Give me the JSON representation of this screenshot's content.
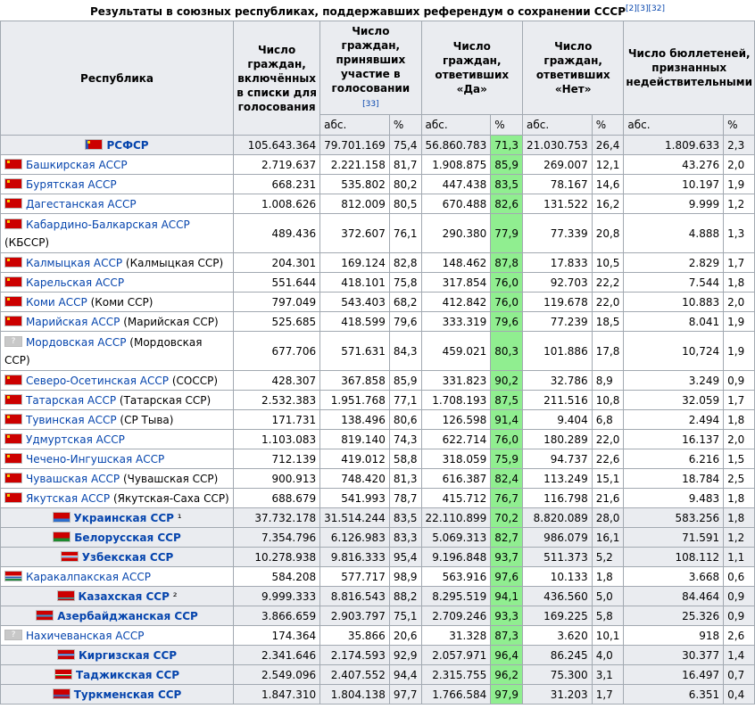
{
  "caption": {
    "text": "Результаты в союзных республиках, поддержавших референдум о сохранении СССР",
    "refs": "[2][3][32]"
  },
  "headers": {
    "republic": "Республика",
    "registered": "Число граждан, включённых в списки для голосования",
    "participated": "Число граждан, принявших участие в голосовании",
    "participated_ref": "[33]",
    "yes": "Число граждан, ответивших «Да»",
    "no": "Число граждан, ответивших «Нет»",
    "invalid": "Число бюллетеней, признанных недействительными",
    "abs": "абс.",
    "pct": "%"
  },
  "rows": [
    {
      "type": "ssr",
      "flag": "ru",
      "name": "РСФСР",
      "note": "",
      "reg": "105.643.364",
      "part": "79.701.169",
      "part_p": "75,4",
      "yes": "56.860.783",
      "yes_p": "71,3",
      "no": "21.030.753",
      "no_p": "26,4",
      "inv": "1.809.633",
      "inv_p": "2,3"
    },
    {
      "type": "asr",
      "flag": "red",
      "name": "Башкирская АССР",
      "suffix": "",
      "reg": "2.719.637",
      "part": "2.221.158",
      "part_p": "81,7",
      "yes": "1.908.875",
      "yes_p": "85,9",
      "no": "269.007",
      "no_p": "12,1",
      "inv": "43.276",
      "inv_p": "2,0"
    },
    {
      "type": "asr",
      "flag": "red",
      "name": "Бурятская АССР",
      "suffix": "",
      "reg": "668.231",
      "part": "535.802",
      "part_p": "80,2",
      "yes": "447.438",
      "yes_p": "83,5",
      "no": "78.167",
      "no_p": "14,6",
      "inv": "10.197",
      "inv_p": "1,9"
    },
    {
      "type": "asr",
      "flag": "red",
      "name": "Дагестанская АССР",
      "suffix": "",
      "reg": "1.008.626",
      "part": "812.009",
      "part_p": "80,5",
      "yes": "670.488",
      "yes_p": "82,6",
      "no": "131.522",
      "no_p": "16,2",
      "inv": "9.999",
      "inv_p": "1,2"
    },
    {
      "type": "asr2",
      "flag": "red",
      "name": "Кабардино-Балкарская АССР",
      "suffix": "(КБССР)",
      "reg": "489.436",
      "part": "372.607",
      "part_p": "76,1",
      "yes": "290.380",
      "yes_p": "77,9",
      "no": "77.339",
      "no_p": "20,8",
      "inv": "4.888",
      "inv_p": "1,3"
    },
    {
      "type": "asr",
      "flag": "red",
      "name": "Калмыцкая АССР",
      "suffix": "(Калмыцкая ССР)",
      "reg": "204.301",
      "part": "169.124",
      "part_p": "82,8",
      "yes": "148.462",
      "yes_p": "87,8",
      "no": "17.833",
      "no_p": "10,5",
      "inv": "2.829",
      "inv_p": "1,7"
    },
    {
      "type": "asr",
      "flag": "red",
      "name": "Карельская АССР",
      "suffix": "",
      "reg": "551.644",
      "part": "418.101",
      "part_p": "75,8",
      "yes": "317.854",
      "yes_p": "76,0",
      "no": "92.703",
      "no_p": "22,2",
      "inv": "7.544",
      "inv_p": "1,8"
    },
    {
      "type": "asr",
      "flag": "red",
      "name": "Коми АССР",
      "suffix": "(Коми ССР)",
      "reg": "797.049",
      "part": "543.403",
      "part_p": "68,2",
      "yes": "412.842",
      "yes_p": "76,0",
      "no": "119.678",
      "no_p": "22,0",
      "inv": "10.883",
      "inv_p": "2,0"
    },
    {
      "type": "asr",
      "flag": "red",
      "name": "Марийская АССР",
      "suffix": "(Марийская ССР)",
      "reg": "525.685",
      "part": "418.599",
      "part_p": "79,6",
      "yes": "333.319",
      "yes_p": "79,6",
      "no": "77.239",
      "no_p": "18,5",
      "inv": "8.041",
      "inv_p": "1,9"
    },
    {
      "type": "asr2",
      "flag": "unk",
      "name": "Мордовская АССР",
      "suffix": "(Мордовская ССР)",
      "reg": "677.706",
      "part": "571.631",
      "part_p": "84,3",
      "yes": "459.021",
      "yes_p": "80,3",
      "no": "101.886",
      "no_p": "17,8",
      "inv": "10,724",
      "inv_p": "1,9"
    },
    {
      "type": "asr",
      "flag": "red",
      "name": "Северо-Осетинская АССР",
      "suffix": "(СОССР)",
      "reg": "428.307",
      "part": "367.858",
      "part_p": "85,9",
      "yes": "331.823",
      "yes_p": "90,2",
      "no": "32.786",
      "no_p": "8,9",
      "inv": "3.249",
      "inv_p": "0,9"
    },
    {
      "type": "asr",
      "flag": "red",
      "name": "Татарская АССР",
      "suffix": "(Татарская ССР)",
      "reg": "2.532.383",
      "part": "1.951.768",
      "part_p": "77,1",
      "yes": "1.708.193",
      "yes_p": "87,5",
      "no": "211.516",
      "no_p": "10,8",
      "inv": "32.059",
      "inv_p": "1,7"
    },
    {
      "type": "asr",
      "flag": "red",
      "name": "Тувинская АССР",
      "suffix": "(СР Тыва)",
      "reg": "171.731",
      "part": "138.496",
      "part_p": "80,6",
      "yes": "126.598",
      "yes_p": "91,4",
      "no": "9.404",
      "no_p": "6,8",
      "inv": "2.494",
      "inv_p": "1,8"
    },
    {
      "type": "asr",
      "flag": "red",
      "name": "Удмуртская АССР",
      "suffix": "",
      "reg": "1.103.083",
      "part": "819.140",
      "part_p": "74,3",
      "yes": "622.714",
      "yes_p": "76,0",
      "no": "180.289",
      "no_p": "22,0",
      "inv": "16.137",
      "inv_p": "2,0"
    },
    {
      "type": "asr",
      "flag": "red",
      "name": "Чечено-Ингушская АССР",
      "suffix": "",
      "reg": "712.139",
      "part": "419.012",
      "part_p": "58,8",
      "yes": "318.059",
      "yes_p": "75,9",
      "no": "94.737",
      "no_p": "22,6",
      "inv": "6.216",
      "inv_p": "1,5"
    },
    {
      "type": "asr",
      "flag": "red",
      "name": "Чувашская АССР",
      "suffix": "(Чувашская ССР)",
      "reg": "900.913",
      "part": "748.420",
      "part_p": "81,3",
      "yes": "616.387",
      "yes_p": "82,4",
      "no": "113.249",
      "no_p": "15,1",
      "inv": "18.784",
      "inv_p": "2,5"
    },
    {
      "type": "asr",
      "flag": "red",
      "name": "Якутская АССР",
      "suffix": "(Якутская-Саха ССР)",
      "reg": "688.679",
      "part": "541.993",
      "part_p": "78,7",
      "yes": "415.712",
      "yes_p": "76,7",
      "no": "116.798",
      "no_p": "21,6",
      "inv": "9.483",
      "inv_p": "1,8"
    },
    {
      "type": "ssr",
      "flag": "ua",
      "name": "Украинская ССР",
      "note": " ¹",
      "reg": "37.732.178",
      "part": "31.514.244",
      "part_p": "83,5",
      "yes": "22.110.899",
      "yes_p": "70,2",
      "no": "8.820.089",
      "no_p": "28,0",
      "inv": "583.256",
      "inv_p": "1,8"
    },
    {
      "type": "ssr",
      "flag": "by",
      "name": "Белорусская ССР",
      "note": "",
      "reg": "7.354.796",
      "part": "6.126.983",
      "part_p": "83,3",
      "yes": "5.069.313",
      "yes_p": "82,7",
      "no": "986.079",
      "no_p": "16,1",
      "inv": "71.591",
      "inv_p": "1,2"
    },
    {
      "type": "ssr",
      "flag": "uz",
      "name": "Узбекская ССР",
      "note": "",
      "reg": "10.278.938",
      "part": "9.816.333",
      "part_p": "95,4",
      "yes": "9.196.848",
      "yes_p": "93,7",
      "no": "511.373",
      "no_p": "5,2",
      "inv": "108.112",
      "inv_p": "1,1"
    },
    {
      "type": "asr",
      "flag": "kk",
      "name": "Каракалпакская АССР",
      "suffix": "",
      "reg": "584.208",
      "part": "577.717",
      "part_p": "98,9",
      "yes": "563.916",
      "yes_p": "97,6",
      "no": "10.133",
      "no_p": "1,8",
      "inv": "3.668",
      "inv_p": "0,6"
    },
    {
      "type": "ssr",
      "flag": "kz",
      "name": "Казахская ССР",
      "note": " ²",
      "reg": "9.999.333",
      "part": "8.816.543",
      "part_p": "88,2",
      "yes": "8.295.519",
      "yes_p": "94,1",
      "no": "436.560",
      "no_p": "5,0",
      "inv": "84.464",
      "inv_p": "0,9"
    },
    {
      "type": "ssr",
      "flag": "az",
      "name": "Азербайджанская ССР",
      "note": "",
      "reg": "3.866.659",
      "part": "2.903.797",
      "part_p": "75,1",
      "yes": "2.709.246",
      "yes_p": "93,3",
      "no": "169.225",
      "no_p": "5,8",
      "inv": "25.326",
      "inv_p": "0,9"
    },
    {
      "type": "asr",
      "flag": "unk",
      "name": "Нахичеванская АССР",
      "suffix": "",
      "reg": "174.364",
      "part": "35.866",
      "part_p": "20,6",
      "yes": "31.328",
      "yes_p": "87,3",
      "no": "3.620",
      "no_p": "10,1",
      "inv": "918",
      "inv_p": "2,6"
    },
    {
      "type": "ssr",
      "flag": "kg",
      "name": "Киргизская ССР",
      "note": "",
      "reg": "2.341.646",
      "part": "2.174.593",
      "part_p": "92,9",
      "yes": "2.057.971",
      "yes_p": "96,4",
      "no": "86.245",
      "no_p": "4,0",
      "inv": "30.377",
      "inv_p": "1,4"
    },
    {
      "type": "ssr",
      "flag": "tj",
      "name": "Таджикская ССР",
      "note": "",
      "reg": "2.549.096",
      "part": "2.407.552",
      "part_p": "94,4",
      "yes": "2.315.755",
      "yes_p": "96,2",
      "no": "75.300",
      "no_p": "3,1",
      "inv": "16.497",
      "inv_p": "0,7"
    },
    {
      "type": "ssr",
      "flag": "tm",
      "name": "Туркменская ССР",
      "note": "",
      "reg": "1.847.310",
      "part": "1.804.138",
      "part_p": "97,7",
      "yes": "1.766.584",
      "yes_p": "97,9",
      "no": "31.203",
      "no_p": "1,7",
      "inv": "6.351",
      "inv_p": "0,4"
    }
  ],
  "colors": {
    "header_bg": "#eaecf0",
    "yes_bg": "#90ee90",
    "link": "#0645ad",
    "border": "#a2a9b1"
  }
}
